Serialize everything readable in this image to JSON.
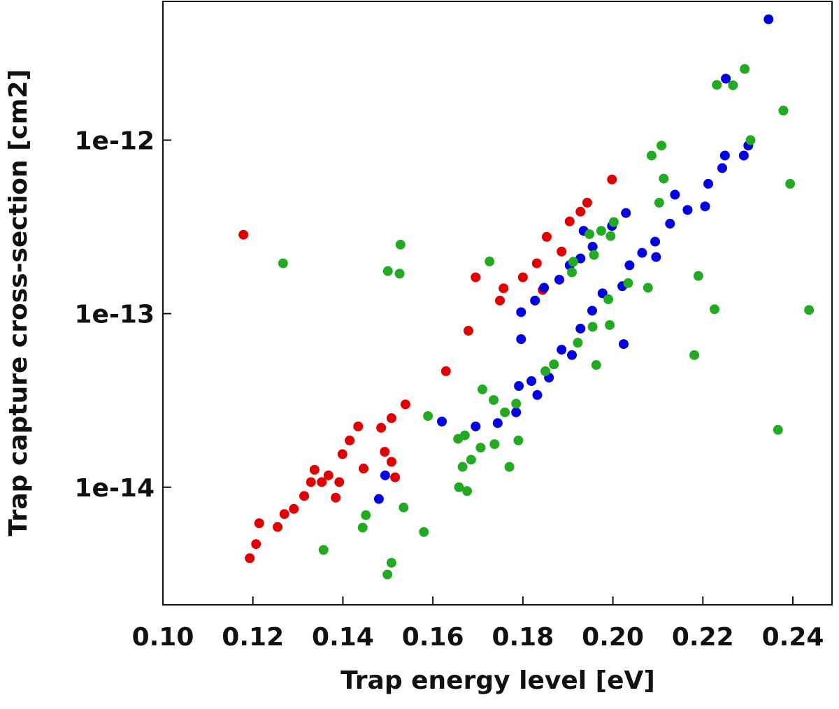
{
  "chart_data": {
    "type": "scatter",
    "xlabel": "Trap energy level [eV]",
    "ylabel": "Trap capture cross-section [cm2]",
    "log_y": true,
    "xlim": [
      0.1,
      0.2487
    ],
    "ylim": [
      2.1e-15,
      6.3e-12
    ],
    "xticks": [
      {
        "value": 0.1,
        "label": "0.10"
      },
      0.12,
      0.14,
      0.16,
      0.18,
      {
        "value": 0.2,
        "label": "0.20"
      },
      0.22,
      0.24
    ],
    "yticks": [
      1e-14,
      1e-13,
      1e-12
    ],
    "series": [
      {
        "color": "#e00000",
        "x": [
          0.1179,
          0.1193,
          0.1207,
          0.1214,
          0.1255,
          0.127,
          0.1291,
          0.1314,
          0.1337,
          0.1353,
          0.1368,
          0.1384,
          0.1399,
          0.1415,
          0.1434,
          0.1446,
          0.1485,
          0.1493,
          0.1508,
          0.1516,
          0.1508,
          0.1539,
          0.1629,
          0.1679,
          0.1695,
          0.1749,
          0.1757,
          0.18,
          0.1831,
          0.1853,
          0.1886,
          0.1904,
          0.1928,
          0.1943,
          0.1998,
          0.1844,
          0.1392,
          0.1329
        ],
        "values": [
          2.85e-13,
          3.9e-15,
          4.7e-15,
          6.2e-15,
          5.9e-15,
          7e-15,
          7.5e-15,
          8.9e-15,
          1.26e-14,
          1.07e-14,
          1.17e-14,
          8.7e-15,
          1.55e-14,
          1.86e-14,
          2.24e-14,
          1.28e-14,
          2.2e-14,
          1.6e-14,
          1.4e-14,
          1.14e-14,
          2.5e-14,
          3e-14,
          4.66e-14,
          7.97e-14,
          1.62e-13,
          1.19e-13,
          1.4e-13,
          1.62e-13,
          1.95e-13,
          2.77e-13,
          2.28e-13,
          3.4e-13,
          3.87e-13,
          4.36e-13,
          5.93e-13,
          1.37e-13,
          1.07e-14,
          1.07e-14
        ]
      },
      {
        "color": "#0000e0",
        "x": [
          0.2346,
          0.2251,
          0.2301,
          0.2291,
          0.2249,
          0.2243,
          0.2212,
          0.2205,
          0.2166,
          0.2138,
          0.2127,
          0.2094,
          0.2096,
          0.2065,
          0.2029,
          0.2021,
          0.2024,
          0.1998,
          0.1955,
          0.1935,
          0.1928,
          0.1904,
          0.1881,
          0.1847,
          0.1827,
          0.1796,
          0.1796,
          0.1819,
          0.1791,
          0.1832,
          0.1858,
          0.1886,
          0.1909,
          0.1928,
          0.1954,
          0.1977,
          0.1785,
          0.1744,
          0.1695,
          0.162,
          0.1494,
          0.148,
          0.2037
        ],
        "values": [
          4.97e-12,
          2.26e-12,
          9.3e-13,
          8.15e-13,
          8.15e-13,
          6.9e-13,
          5.6e-13,
          4.15e-13,
          3.96e-13,
          4.85e-13,
          3.3e-13,
          2.6e-13,
          2.12e-13,
          2.24e-13,
          3.8e-13,
          1.44e-13,
          6.68e-14,
          3.2e-13,
          2.43e-13,
          3e-13,
          2.08e-13,
          1.9e-13,
          1.57e-13,
          1.41e-13,
          1.19e-13,
          1.02e-13,
          7.13e-14,
          4.09e-14,
          3.83e-14,
          3.4e-14,
          4.28e-14,
          6.2e-14,
          5.77e-14,
          8.2e-14,
          1.04e-13,
          1.31e-13,
          2.7e-14,
          2.34e-14,
          2.24e-14,
          2.39e-14,
          1.17e-14,
          8.55e-15,
          1.9e-13
        ]
      },
      {
        "color": "#22aa22",
        "x": [
          0.2293,
          0.2231,
          0.2267,
          0.2379,
          0.2306,
          0.2108,
          0.2086,
          0.2113,
          0.2394,
          0.2103,
          0.2002,
          0.1974,
          0.1948,
          0.1995,
          0.1912,
          0.1909,
          0.1958,
          0.1726,
          0.1267,
          0.1528,
          0.15,
          0.1526,
          0.219,
          0.2078,
          0.2034,
          0.199,
          0.2436,
          0.2226,
          0.1993,
          0.1955,
          0.1922,
          0.2181,
          0.1963,
          0.185,
          0.1869,
          0.171,
          0.1735,
          0.1785,
          0.176,
          0.1589,
          0.1671,
          0.1656,
          0.1706,
          0.1737,
          0.179,
          0.1685,
          0.1666,
          0.177,
          0.1658,
          0.1676,
          0.2367,
          0.1535,
          0.1451,
          0.1444,
          0.158,
          0.1357,
          0.1508,
          0.1499
        ],
        "values": [
          2.57e-12,
          2.08e-12,
          2.07e-12,
          1.48e-12,
          1e-12,
          9.3e-13,
          8.15e-13,
          6e-13,
          5.6e-13,
          4.36e-13,
          3.37e-13,
          3e-13,
          2.87e-13,
          2.8e-13,
          1.99e-13,
          1.73e-13,
          2.18e-13,
          2e-13,
          1.95e-13,
          2.5e-13,
          1.76e-13,
          1.7e-13,
          1.65e-13,
          1.41e-13,
          1.5e-13,
          1.21e-13,
          1.05e-13,
          1.06e-13,
          8.6e-14,
          8.4e-14,
          6.8e-14,
          5.77e-14,
          5.06e-14,
          4.66e-14,
          5.1e-14,
          3.66e-14,
          3.18e-14,
          3.03e-14,
          2.7e-14,
          2.57e-14,
          1.99e-14,
          1.9e-14,
          1.69e-14,
          1.77e-14,
          1.86e-14,
          1.44e-14,
          1.31e-14,
          1.31e-14,
          1e-14,
          9.5e-15,
          2.14e-14,
          7.64e-15,
          6.9e-15,
          5.85e-15,
          5.52e-15,
          4.35e-15,
          3.67e-15,
          3.14e-15
        ]
      }
    ]
  }
}
